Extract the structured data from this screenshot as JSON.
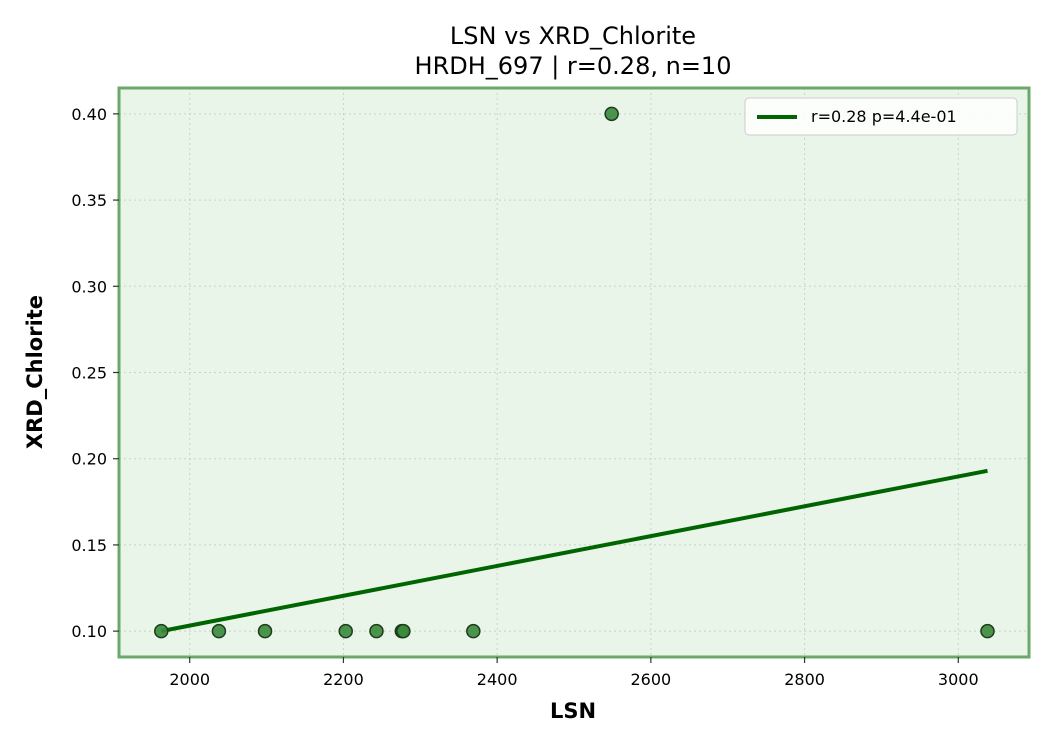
{
  "chart_data": {
    "type": "scatter",
    "title": "LSN vs XRD_Chlorite",
    "subtitle": "HRDH_697 | r=0.28, n=10",
    "xlabel": "LSN",
    "ylabel": "XRD_Chlorite",
    "xlim": [
      1908,
      3092
    ],
    "ylim": [
      0.085,
      0.415
    ],
    "xticks": [
      2000,
      2200,
      2400,
      2600,
      2800,
      3000
    ],
    "yticks": [
      0.1,
      0.15,
      0.2,
      0.25,
      0.3,
      0.35,
      0.4
    ],
    "grid": true,
    "legend_position": "top-right",
    "points": [
      {
        "x": 1963,
        "y": 0.1
      },
      {
        "x": 2038,
        "y": 0.1
      },
      {
        "x": 2098,
        "y": 0.1
      },
      {
        "x": 2203,
        "y": 0.1
      },
      {
        "x": 2243,
        "y": 0.1
      },
      {
        "x": 2276,
        "y": 0.1
      },
      {
        "x": 2278,
        "y": 0.1
      },
      {
        "x": 2369,
        "y": 0.1
      },
      {
        "x": 2549,
        "y": 0.4
      },
      {
        "x": 3038,
        "y": 0.1
      }
    ],
    "fit_line": {
      "label": "r=0.28  p=4.4e-01",
      "start": {
        "x": 1963,
        "y": 0.1
      },
      "end": {
        "x": 3038,
        "y": 0.193
      }
    },
    "colors": {
      "plot_background": "#e8f5e8",
      "frame": "#6aa96a",
      "point_fill": "#3a8a3a",
      "point_edge": "#1d3b1d",
      "fit_line": "#006400",
      "grid": "#c8d4c8"
    }
  }
}
